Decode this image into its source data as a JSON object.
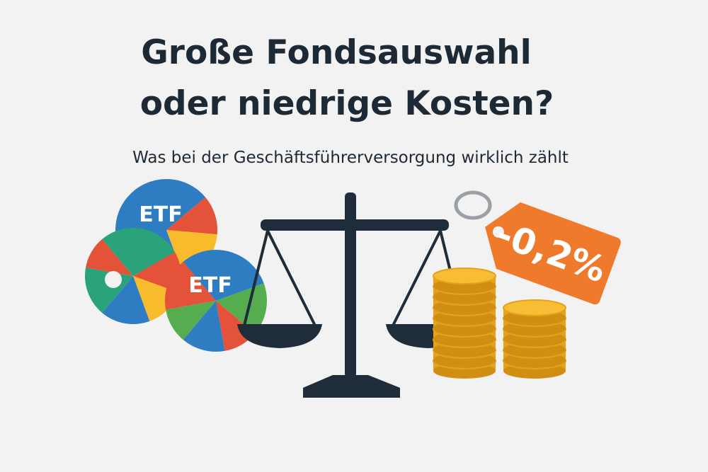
{
  "title": {
    "line1": "Große Fondsauswahl",
    "line2": "oder niedrige Kosten?"
  },
  "subtitle": "Was bei der Geschäftsführerversorgung wirklich zählt",
  "illustration": {
    "fund_labels": [
      "ETF",
      "ETF"
    ],
    "price_tag": "-0,2%"
  }
}
